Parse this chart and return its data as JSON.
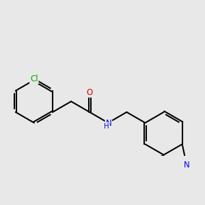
{
  "bg": "#e8e8e8",
  "bond_color": "#000000",
  "lw": 1.5,
  "dbo": 0.05,
  "atom_colors": {
    "Cl": "#00aa00",
    "O": "#dd0000",
    "N": "#0000ee"
  },
  "fs": 8.5,
  "figsize": [
    3.0,
    3.0
  ],
  "dpi": 100,
  "xlim": [
    0.0,
    9.5
  ],
  "ylim": [
    1.5,
    6.5
  ]
}
